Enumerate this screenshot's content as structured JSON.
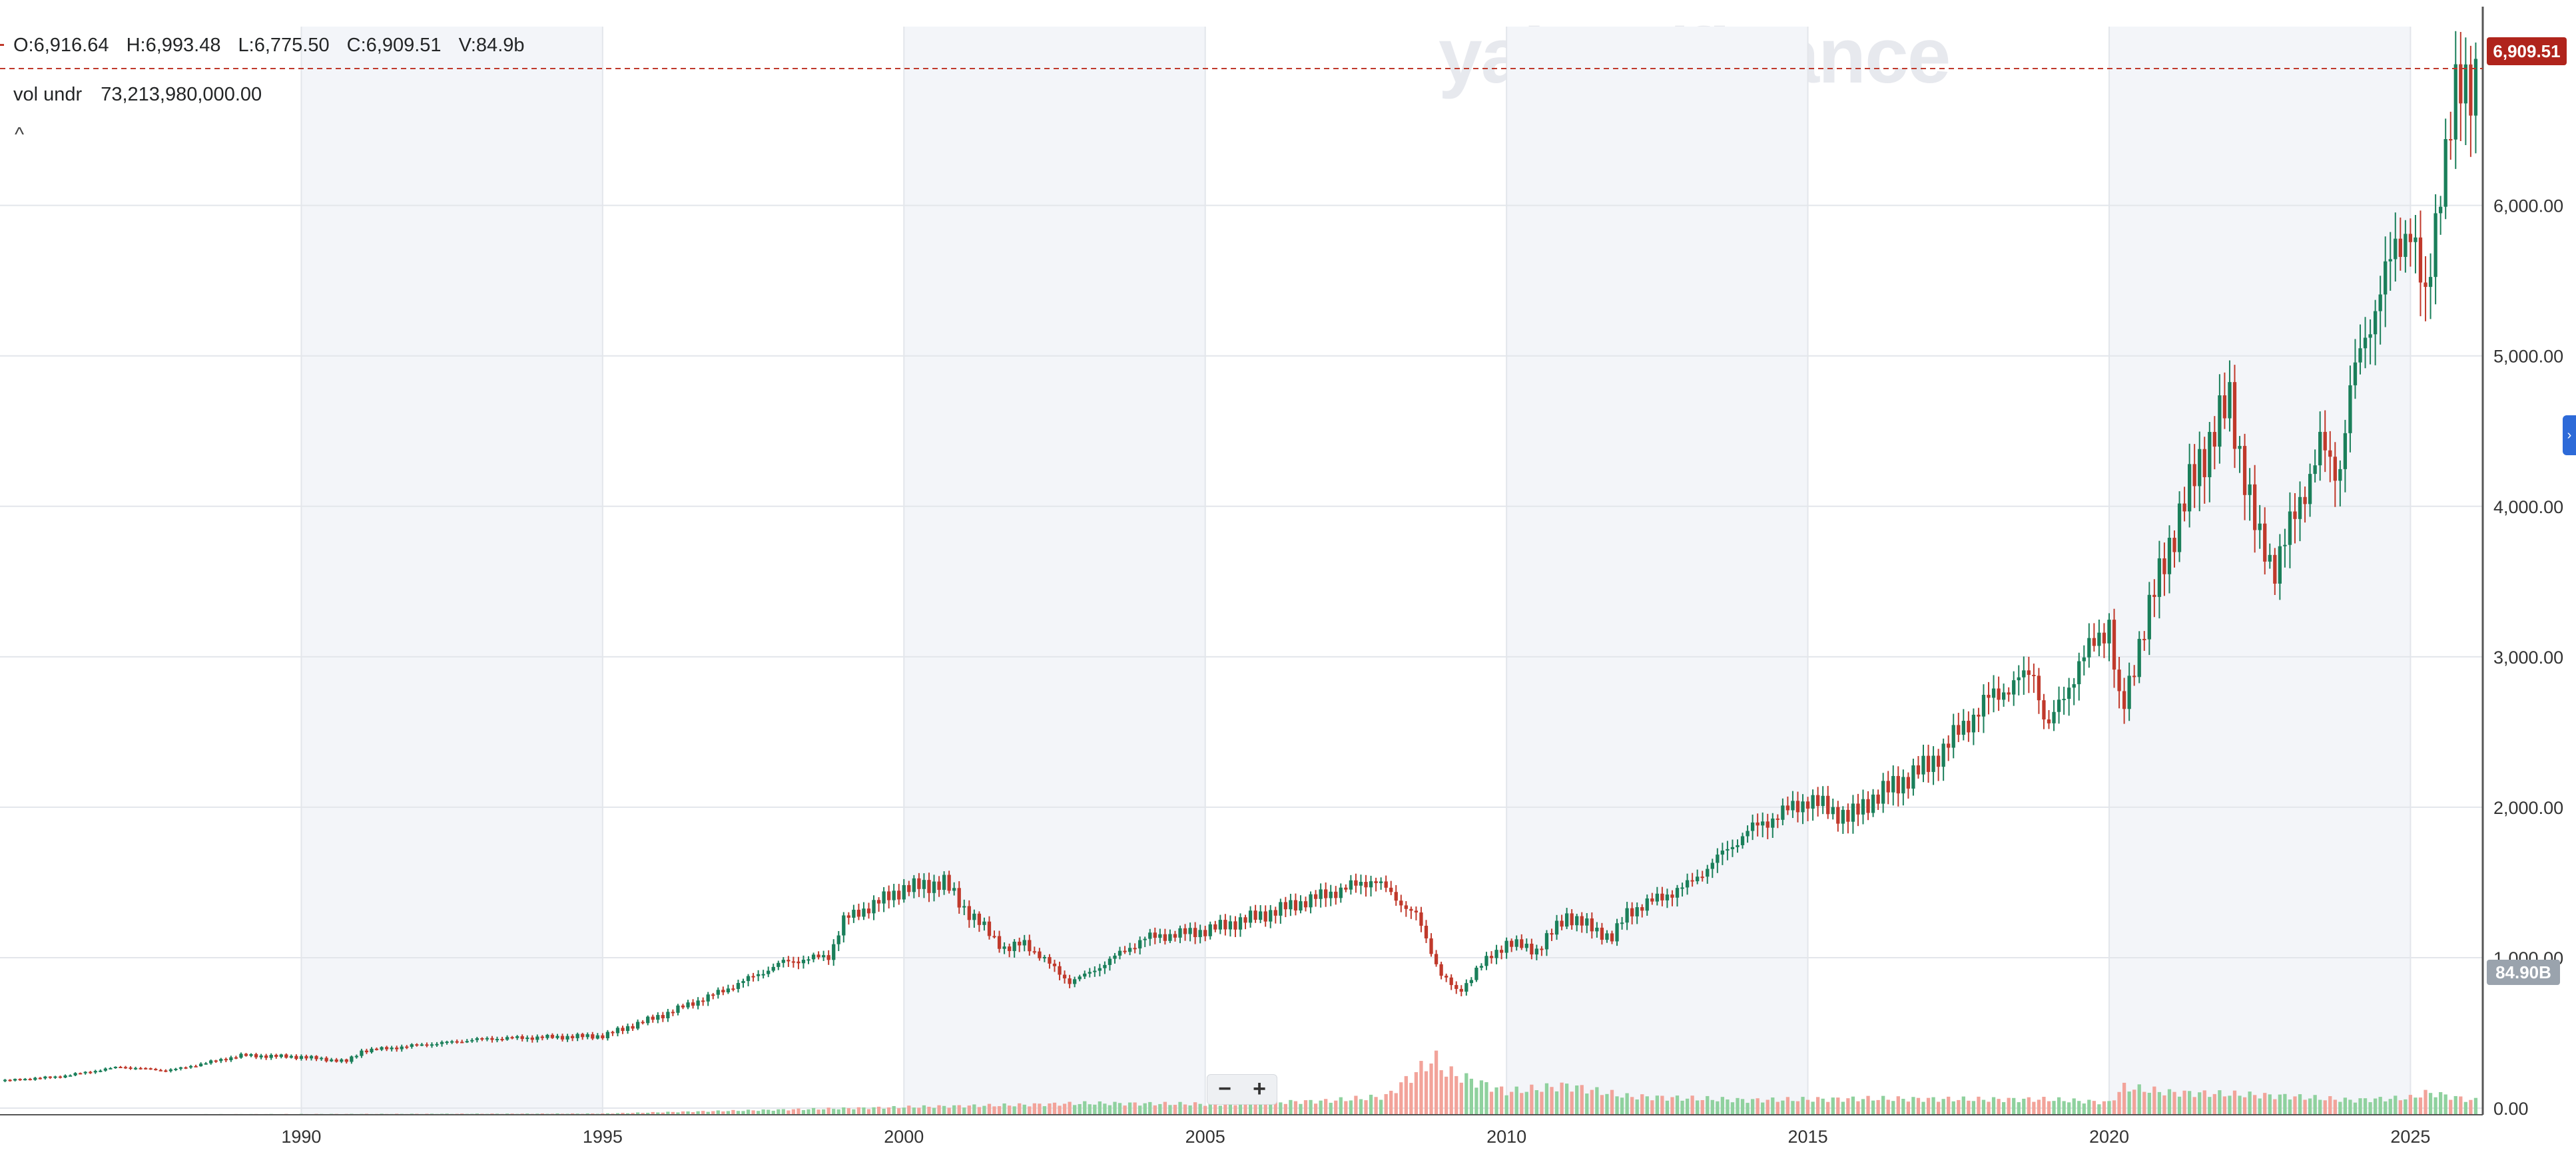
{
  "ohlc": {
    "open": "O:6,916.64",
    "high": "H:6,993.48",
    "low": "L:6,775.50",
    "close": "C:6,909.51",
    "volume": "V:84.9b"
  },
  "volume_legend": {
    "label": "vol undr",
    "value": "73,213,980,000.00"
  },
  "collapse_icon": "^",
  "watermark": "yahoo/finance",
  "last_price_badge": "6,909.51",
  "last_volume_badge": "84.90B",
  "zoom": {
    "minus": "−",
    "plus": "+"
  },
  "colors": {
    "up_candle": "#1a7f5a",
    "down_candle": "#c0392b",
    "up_volume": "#8fd19e",
    "down_volume": "#f2a39a",
    "price_line": "#c0392b",
    "shaded_band": "#f3f5f9",
    "grid": "#e3e6eb"
  },
  "chart_data": {
    "type": "line",
    "chart_style": "candlestick with volume bars",
    "frequency": "monthly",
    "x_tick_labels": [
      "1990",
      "1995",
      "2000",
      "2005",
      "2010",
      "2015",
      "2020",
      "2025"
    ],
    "y_tick_labels": [
      "0.00",
      "1,000.00",
      "2,000.00",
      "3,000.00",
      "4,000.00",
      "5,000.00",
      "6,000.00"
    ],
    "ylim": [
      0,
      7100
    ],
    "volume_ylim": [
      0,
      3200
    ],
    "volume_units": "billions",
    "last_close": 6909.51,
    "last_volume": 84.9,
    "series": [
      {
        "values_kind": "close",
        "x": [
          1985.0,
          1986.0,
          1987.0,
          1987.75,
          1988.0,
          1989.0,
          1990.0,
          1990.75,
          1991.0,
          1992.0,
          1993.0,
          1994.0,
          1995.0,
          1996.0,
          1997.0,
          1998.0,
          1998.75,
          1999.0,
          2000.0,
          2000.67,
          2001.0,
          2001.7,
          2002.0,
          2002.75,
          2003.0,
          2004.0,
          2005.0,
          2006.0,
          2007.0,
          2007.8,
          2008.5,
          2008.9,
          2009.2,
          2009.5,
          2010.0,
          2010.5,
          2011.0,
          2011.75,
          2012.0,
          2013.0,
          2014.0,
          2015.0,
          2015.7,
          2016.0,
          2017.0,
          2018.0,
          2018.75,
          2018.97,
          2019.5,
          2020.0,
          2020.2,
          2020.5,
          2021.0,
          2021.5,
          2022.0,
          2022.45,
          2022.75,
          2023.0,
          2023.5,
          2023.8,
          2024.0,
          2024.5,
          2025.0,
          2025.25,
          2025.5,
          2025.75,
          2026.0,
          2026.08
        ],
        "values": [
          180,
          210,
          275,
          250,
          265,
          350,
          340,
          310,
          380,
          420,
          460,
          470,
          480,
          620,
          780,
          970,
          1010,
          1250,
          1460,
          1500,
          1330,
          1050,
          1100,
          840,
          880,
          1130,
          1180,
          1290,
          1420,
          1520,
          1280,
          900,
          760,
          920,
          1100,
          1050,
          1280,
          1130,
          1300,
          1480,
          1840,
          2050,
          1930,
          2040,
          2280,
          2720,
          2900,
          2510,
          2950,
          3230,
          2580,
          3100,
          3750,
          4300,
          4700,
          3800,
          3600,
          3850,
          4400,
          4200,
          4770,
          5460,
          5900,
          5300,
          6200,
          6700,
          6840,
          6909.51
        ]
      },
      {
        "values_kind": "volume",
        "x": [
          1985,
          1990,
          1995,
          1997,
          2000,
          2002,
          2003,
          2005,
          2007,
          2008,
          2008.8,
          2009,
          2010,
          2011,
          2012,
          2014,
          2016,
          2018,
          2019,
          2020,
          2020.25,
          2021,
          2022,
          2023,
          2024,
          2025,
          2025.3,
          2026
        ],
        "values": [
          2,
          5,
          8,
          25,
          50,
          65,
          75,
          70,
          90,
          120,
          370,
          280,
          150,
          190,
          120,
          95,
          105,
          100,
          100,
          80,
          180,
          145,
          135,
          120,
          95,
          110,
          145,
          95
        ]
      }
    ]
  }
}
